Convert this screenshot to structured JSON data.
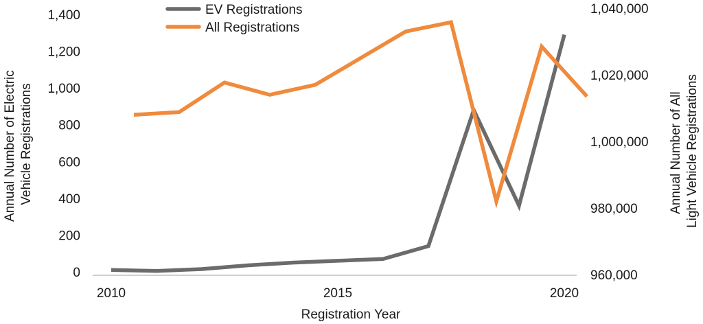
{
  "chart_data": {
    "type": "line",
    "xlabel": "Registration Year",
    "ylabel_left": "Annual Number of Electric Vehicle Registrations",
    "ylabel_left_lines": [
      "Annual Number of Electric",
      "Vehicle Registrations"
    ],
    "ylabel_right": "Annual Number of All Light Vehicle Registrations",
    "ylabel_right_lines": [
      "Annual Number of All",
      "Light Vehicle Registrations"
    ],
    "x_ticks": [
      "2010",
      "2015",
      "2020"
    ],
    "x_tick_values": [
      2010,
      2015,
      2020
    ],
    "xlim": [
      2010,
      2020
    ],
    "y_left_ticks": [
      "0",
      "200",
      "400",
      "600",
      "800",
      "1,000",
      "1,200",
      "1,400"
    ],
    "y_left_tick_values": [
      0,
      200,
      400,
      600,
      800,
      1000,
      1200,
      1400
    ],
    "ylim_left": [
      0,
      1400
    ],
    "y_right_ticks": [
      "960,000",
      "980,000",
      "1,000,000",
      "1,020,000",
      "1,040,000"
    ],
    "y_right_tick_values": [
      960000,
      980000,
      1000000,
      1020000,
      1040000
    ],
    "ylim_right": [
      960000,
      1040000
    ],
    "grid": false,
    "legend_position": "top-center",
    "series": [
      {
        "name": "EV Registrations",
        "axis": "left",
        "color": "#6b6b6b",
        "x": [
          2010,
          2011,
          2012,
          2013,
          2014,
          2015,
          2016,
          2017,
          2018,
          2019,
          2020
        ],
        "values": [
          10,
          5,
          15,
          35,
          50,
          60,
          70,
          140,
          880,
          360,
          1290
        ]
      },
      {
        "name": "All Registrations",
        "axis": "right",
        "color": "#f08a3c",
        "x": [
          2010.5,
          2011.5,
          2012.5,
          2013.5,
          2014.5,
          2015.5,
          2016.5,
          2017.5,
          2018.5,
          2019.5,
          2020.5
        ],
        "values": [
          1008000,
          1008800,
          1017700,
          1014000,
          1017000,
          1025000,
          1033000,
          1035800,
          982000,
          1028500,
          1013500
        ]
      }
    ]
  }
}
